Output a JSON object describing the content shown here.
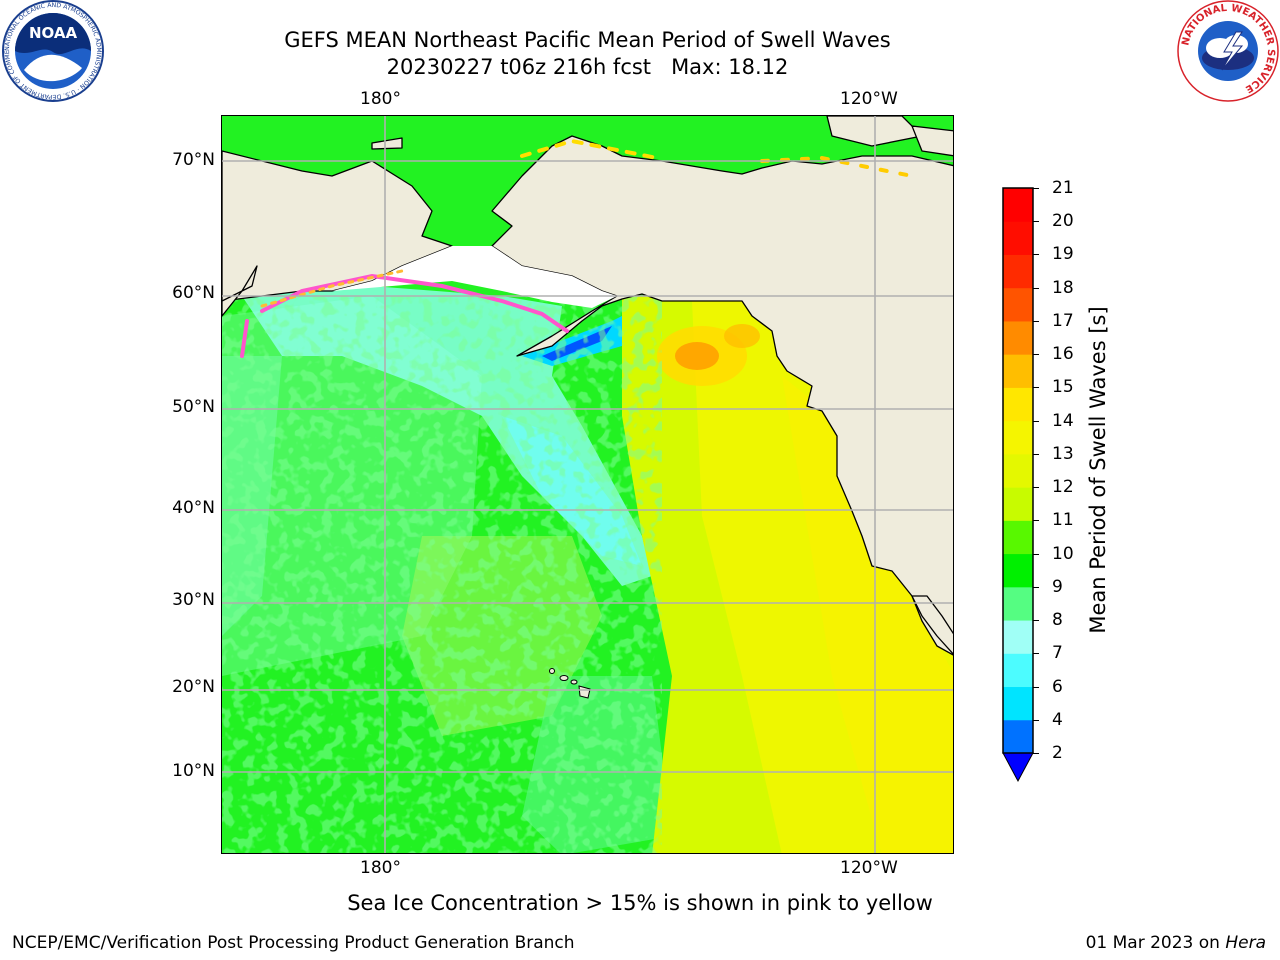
{
  "header": {
    "title_line1": "GEFS MEAN Northeast Pacific Mean Period of Swell Waves",
    "title_line2": "20230227 t06z 216h fcst   Max: 18.12"
  },
  "logos": {
    "noaa_text": "NOAA",
    "noaa_ring_text": "NATIONAL OCEANIC AND ATMOSPHERIC ADMINISTRATION · U.S. DEPARTMENT OF COMMERCE",
    "nws_ring_text": "NATIONAL WEATHER SERVICE"
  },
  "map": {
    "lon_ticks_top": [
      "180°",
      "120°W"
    ],
    "lon_ticks_bottom": [
      "180°",
      "120°W"
    ],
    "lat_ticks": [
      "70°N",
      "60°N",
      "50°N",
      "40°N",
      "30°N",
      "20°N",
      "10°N"
    ],
    "land_color": "#efecdc",
    "grid_color": "#b0b0b0"
  },
  "colorbar": {
    "label": "Mean Period of Swell Waves [s]",
    "levels": [
      "2",
      "4",
      "6",
      "7",
      "8",
      "9",
      "10",
      "11",
      "12",
      "13",
      "14",
      "15",
      "16",
      "17",
      "18",
      "19",
      "20",
      "21"
    ],
    "colors": [
      "#0072ff",
      "#00e4ff",
      "#4cfcff",
      "#a0fff6",
      "#55fd82",
      "#00f000",
      "#58f800",
      "#c8fb00",
      "#e4f800",
      "#f5f500",
      "#ffe700",
      "#ffbe00",
      "#ff8b00",
      "#ff5400",
      "#ff2b00",
      "#ff0d00",
      "#ff0000"
    ],
    "under_color": "#0000ff"
  },
  "notes": {
    "ice": "Sea Ice Concentration > 15% is shown in pink to yellow"
  },
  "footer": {
    "left": "NCEP/EMC/Verification Post Processing Product Generation Branch",
    "date": "01 Mar 2023 on ",
    "host": "Hera"
  }
}
